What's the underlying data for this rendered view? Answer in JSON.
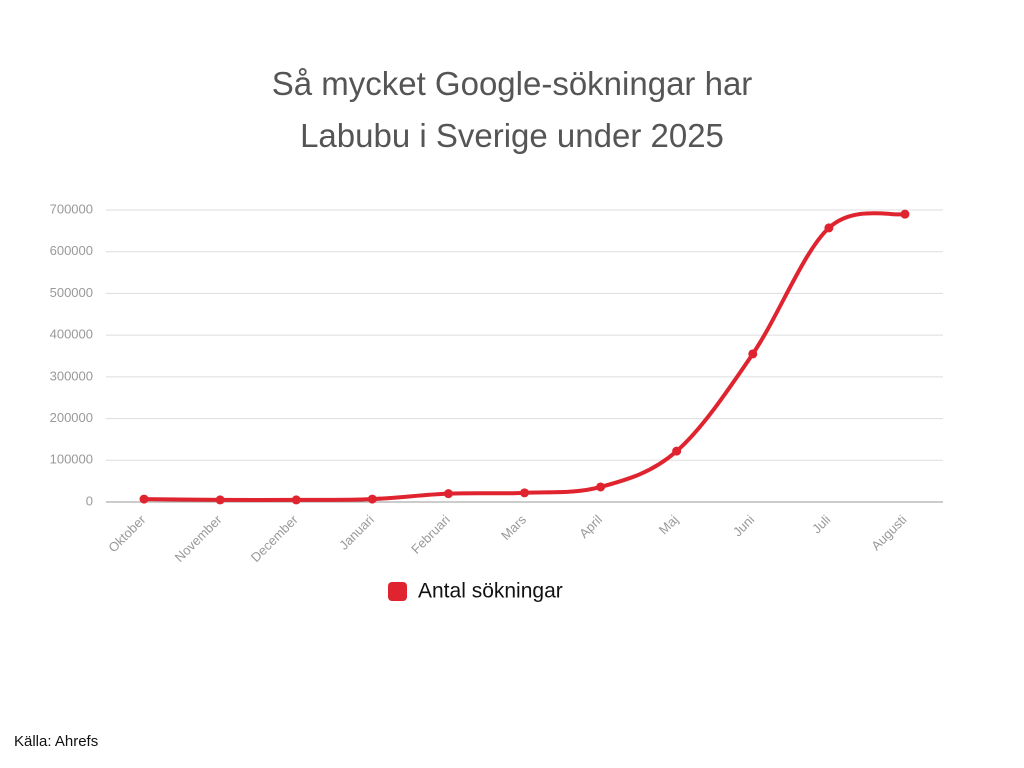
{
  "chart_data": {
    "type": "line",
    "title": "Så mycket Google-sökningar har Labubu i Sverige under 2025",
    "categories": [
      "Oktober",
      "November",
      "December",
      "Januari",
      "Februari",
      "Mars",
      "April",
      "Maj",
      "Juni",
      "Juli",
      "Augusti"
    ],
    "series": [
      {
        "name": "Antal sökningar",
        "color": "#e0242f",
        "values": [
          7000,
          5000,
          5000,
          7000,
          20000,
          22000,
          36000,
          122000,
          355000,
          657000,
          690000
        ]
      }
    ],
    "ylim": [
      0,
      700000
    ],
    "yticks": [
      0,
      100000,
      200000,
      300000,
      400000,
      500000,
      600000,
      700000
    ],
    "grid": true,
    "source": "Källa: Ahrefs"
  }
}
